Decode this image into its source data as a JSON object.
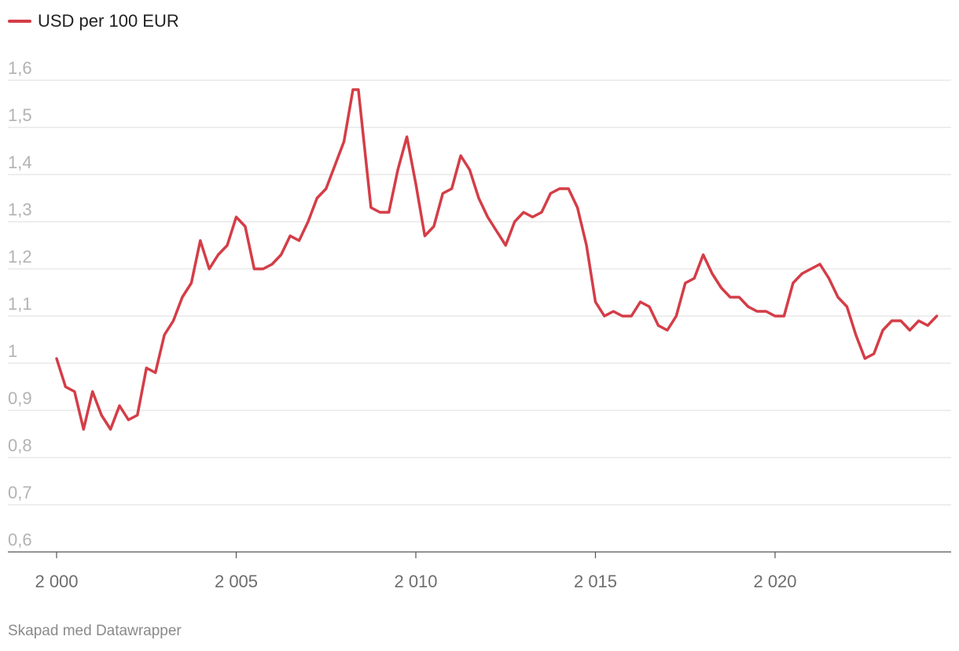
{
  "legend": {
    "label": "USD per 100 EUR",
    "color": "#d43d47"
  },
  "footer": "Skapad med Datawrapper",
  "chart_data": {
    "type": "line",
    "title": "",
    "xlabel": "",
    "ylabel": "",
    "ylim": [
      0.6,
      1.6
    ],
    "xlim": [
      2000,
      2024.5
    ],
    "y_ticks": [
      0.6,
      0.7,
      0.8,
      0.9,
      1.0,
      1.1,
      1.2,
      1.3,
      1.4,
      1.5,
      1.6
    ],
    "y_tick_labels": [
      "0,6",
      "0,7",
      "0,8",
      "0,9",
      "1",
      "1,1",
      "1,2",
      "1,3",
      "1,4",
      "1,5",
      "1,6"
    ],
    "x_ticks": [
      2000,
      2005,
      2010,
      2015,
      2020
    ],
    "x_tick_labels": [
      "2 000",
      "2 005",
      "2 010",
      "2 015",
      "2 020"
    ],
    "grid": true,
    "legend_position": "top-left",
    "series": [
      {
        "name": "USD per 100 EUR",
        "color": "#d43d47",
        "x": [
          2000.0,
          2000.25,
          2000.5,
          2000.75,
          2001.0,
          2001.25,
          2001.5,
          2001.75,
          2002.0,
          2002.25,
          2002.5,
          2002.75,
          2003.0,
          2003.25,
          2003.5,
          2003.75,
          2004.0,
          2004.25,
          2004.5,
          2004.75,
          2005.0,
          2005.25,
          2005.5,
          2005.75,
          2006.0,
          2006.25,
          2006.5,
          2006.75,
          2007.0,
          2007.25,
          2007.5,
          2007.75,
          2008.0,
          2008.25,
          2008.4,
          2008.75,
          2009.0,
          2009.25,
          2009.5,
          2009.75,
          2010.0,
          2010.25,
          2010.5,
          2010.75,
          2011.0,
          2011.25,
          2011.5,
          2011.75,
          2012.0,
          2012.25,
          2012.5,
          2012.75,
          2013.0,
          2013.25,
          2013.5,
          2013.75,
          2014.0,
          2014.25,
          2014.5,
          2014.75,
          2015.0,
          2015.25,
          2015.5,
          2015.75,
          2016.0,
          2016.25,
          2016.5,
          2016.75,
          2017.0,
          2017.25,
          2017.5,
          2017.75,
          2018.0,
          2018.25,
          2018.5,
          2018.75,
          2019.0,
          2019.25,
          2019.5,
          2019.75,
          2020.0,
          2020.25,
          2020.5,
          2020.75,
          2021.0,
          2021.25,
          2021.5,
          2021.75,
          2022.0,
          2022.25,
          2022.5,
          2022.75,
          2023.0,
          2023.25,
          2023.5,
          2023.75,
          2024.0,
          2024.25,
          2024.5
        ],
        "y": [
          1.01,
          0.95,
          0.94,
          0.86,
          0.94,
          0.89,
          0.86,
          0.91,
          0.88,
          0.89,
          0.99,
          0.98,
          1.06,
          1.09,
          1.14,
          1.17,
          1.26,
          1.2,
          1.23,
          1.25,
          1.31,
          1.29,
          1.2,
          1.2,
          1.21,
          1.23,
          1.27,
          1.26,
          1.3,
          1.35,
          1.37,
          1.42,
          1.47,
          1.58,
          1.58,
          1.33,
          1.32,
          1.32,
          1.41,
          1.48,
          1.38,
          1.27,
          1.29,
          1.36,
          1.37,
          1.44,
          1.41,
          1.35,
          1.31,
          1.28,
          1.25,
          1.3,
          1.32,
          1.31,
          1.32,
          1.36,
          1.37,
          1.37,
          1.33,
          1.25,
          1.13,
          1.1,
          1.11,
          1.1,
          1.1,
          1.13,
          1.12,
          1.08,
          1.07,
          1.1,
          1.17,
          1.18,
          1.23,
          1.19,
          1.16,
          1.14,
          1.14,
          1.12,
          1.11,
          1.11,
          1.1,
          1.1,
          1.17,
          1.19,
          1.2,
          1.21,
          1.18,
          1.14,
          1.12,
          1.06,
          1.01,
          1.02,
          1.07,
          1.09,
          1.09,
          1.07,
          1.09,
          1.08,
          1.1
        ]
      }
    ]
  }
}
